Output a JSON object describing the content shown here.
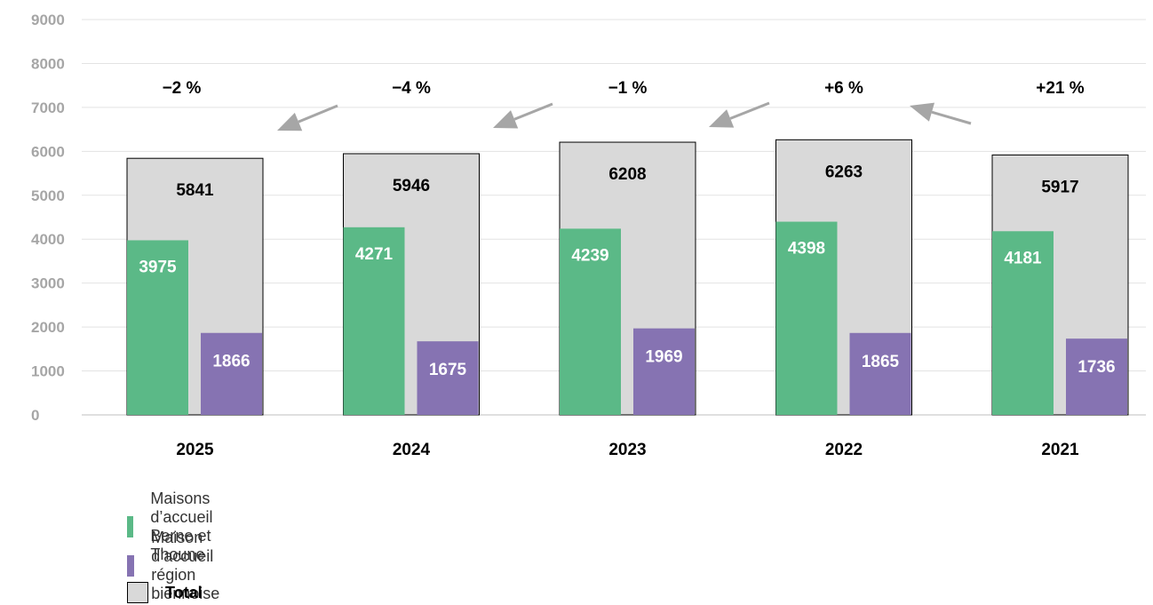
{
  "chart_data": {
    "type": "bar",
    "categories": [
      "2025",
      "2024",
      "2023",
      "2022",
      "2021"
    ],
    "series": [
      {
        "name": "Total",
        "values": [
          5841,
          5946,
          6208,
          6263,
          5917
        ],
        "color": "#d9d9d9"
      },
      {
        "name": "Maisons d’accueil Berne et Thoune",
        "values": [
          3975,
          4271,
          4239,
          4398,
          4181
        ],
        "color": "#5bb987"
      },
      {
        "name": "Maison d’accueil région biennoise",
        "values": [
          1866,
          1675,
          1969,
          1865,
          1736
        ],
        "color": "#8673b2"
      }
    ],
    "changes": [
      "−2 %",
      "−4 %",
      "−1 %",
      "+6 %",
      "+21 %"
    ],
    "yticks": [
      0,
      1000,
      2000,
      3000,
      4000,
      5000,
      6000,
      7000,
      8000,
      9000
    ],
    "ylim": [
      0,
      9000
    ],
    "grid": true,
    "legend_position": "bottom-left",
    "title": "",
    "xlabel": "",
    "ylabel": ""
  },
  "legend": {
    "items": [
      {
        "label": "Maisons d’accueil Berne et Thoune",
        "color": "#5bb987",
        "bold": false
      },
      {
        "label": "Maison d’accueil région biennoise",
        "color": "#8673b2",
        "bold": false
      },
      {
        "label": "Total",
        "color": "#d9d9d9",
        "bold": true
      }
    ]
  }
}
